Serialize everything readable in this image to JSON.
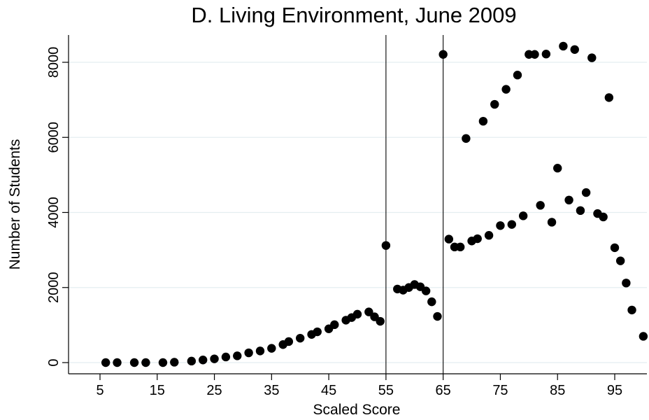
{
  "chart_data": {
    "type": "scatter",
    "title": "D. Living Environment, June 2009",
    "xlabel": "Scaled Score",
    "ylabel": "Number of Students",
    "xlim": [
      0,
      100
    ],
    "ylim": [
      -300,
      8700
    ],
    "x_ticks": [
      5,
      15,
      25,
      35,
      45,
      55,
      65,
      75,
      85,
      95
    ],
    "x_tick_labels": [
      "5",
      "15",
      "25",
      "35",
      "45",
      "55",
      "65",
      "75",
      "85",
      "95"
    ],
    "y_ticks": [
      0,
      2000,
      4000,
      6000,
      8000
    ],
    "y_tick_labels": [
      "0",
      "2000",
      "4000",
      "6000",
      "8000"
    ],
    "grid": "horizontal",
    "legend": "none",
    "reference_lines_x": [
      55,
      65
    ],
    "marker_color": "#000000",
    "grid_color": "#e4eef0",
    "points": [
      [
        6,
        0
      ],
      [
        8,
        0
      ],
      [
        11,
        0
      ],
      [
        13,
        0
      ],
      [
        16,
        0
      ],
      [
        18,
        10
      ],
      [
        21,
        40
      ],
      [
        23,
        70
      ],
      [
        25,
        100
      ],
      [
        27,
        150
      ],
      [
        29,
        180
      ],
      [
        31,
        260
      ],
      [
        33,
        310
      ],
      [
        35,
        380
      ],
      [
        37,
        480
      ],
      [
        38,
        560
      ],
      [
        40,
        650
      ],
      [
        42,
        750
      ],
      [
        43,
        820
      ],
      [
        45,
        900
      ],
      [
        46,
        1010
      ],
      [
        48,
        1130
      ],
      [
        49,
        1200
      ],
      [
        50,
        1290
      ],
      [
        52,
        1350
      ],
      [
        53,
        1220
      ],
      [
        54,
        1100
      ],
      [
        55,
        3120
      ],
      [
        57,
        1960
      ],
      [
        58,
        1930
      ],
      [
        59,
        2000
      ],
      [
        60,
        2080
      ],
      [
        61,
        2020
      ],
      [
        62,
        1910
      ],
      [
        63,
        1620
      ],
      [
        64,
        1230
      ],
      [
        65,
        8210
      ],
      [
        66,
        3290
      ],
      [
        67,
        3080
      ],
      [
        68,
        3080
      ],
      [
        69,
        5970
      ],
      [
        70,
        3240
      ],
      [
        71,
        3300
      ],
      [
        72,
        6430
      ],
      [
        73,
        3390
      ],
      [
        74,
        6880
      ],
      [
        75,
        3650
      ],
      [
        76,
        7280
      ],
      [
        77,
        3680
      ],
      [
        78,
        7660
      ],
      [
        79,
        3910
      ],
      [
        80,
        8210
      ],
      [
        81,
        8210
      ],
      [
        82,
        4190
      ],
      [
        83,
        8220
      ],
      [
        84,
        3740
      ],
      [
        85,
        5180
      ],
      [
        86,
        8430
      ],
      [
        87,
        4330
      ],
      [
        88,
        8340
      ],
      [
        89,
        4050
      ],
      [
        90,
        4530
      ],
      [
        91,
        8120
      ],
      [
        92,
        3970
      ],
      [
        93,
        3880
      ],
      [
        94,
        7060
      ],
      [
        95,
        3060
      ],
      [
        96,
        2710
      ],
      [
        97,
        2120
      ],
      [
        98,
        1400
      ],
      [
        100,
        700
      ]
    ]
  }
}
